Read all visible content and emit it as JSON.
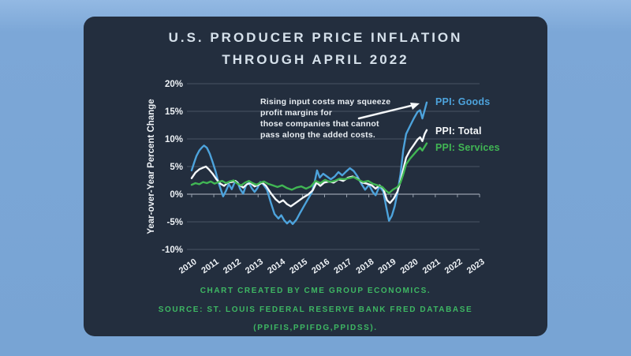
{
  "title": {
    "line1": "U.S. PRODUCER PRICE INFLATION",
    "line2": "THROUGH APRIL 2022"
  },
  "annotation": {
    "line1": "Rising input costs may squeeze",
    "line2": "profit margins for",
    "line3": "those companies that cannot",
    "line4": "pass along the added costs."
  },
  "legend": {
    "goods": "PPI: Goods",
    "total": "PPI: Total",
    "services": "PPI: Services"
  },
  "footer": {
    "line1": "CHART CREATED BY CME GROUP ECONOMICS.",
    "line2": "SOURCE: ST. LOUIS FEDERAL RESERVE BANK FRED DATABASE",
    "line3": "(PPIFIS,PPIFDG,PPIDSS)."
  },
  "colors": {
    "background": "#7ca7d7",
    "card": "#232e3e",
    "title_text": "#d6e1eb",
    "goods": "#4da3dc",
    "total": "#f4f7f9",
    "services": "#41b654",
    "footer_text": "#3eb763",
    "grid": "#4a5464",
    "zero_axis": "#97a0ad",
    "tick_text": "#eef2f6",
    "arrow": "#f4f7f9"
  },
  "chart_data": {
    "type": "line",
    "title": "U.S. Producer Price Inflation through April 2022",
    "xlabel": "",
    "ylabel": "Year-over-Year Percent Change",
    "ylim": [
      -10,
      20
    ],
    "xlim": [
      2010,
      2023
    ],
    "grid": true,
    "legend_position": "right of line ends",
    "y_ticks": [
      20,
      15,
      10,
      5,
      0,
      -5,
      -10
    ],
    "y_tick_labels": [
      "20%",
      "15%",
      "10%",
      "5%",
      "0%",
      "-5%",
      "-10%"
    ],
    "x_tick_labels": [
      "2010",
      "2011",
      "2012",
      "2013",
      "2014",
      "2015",
      "2016",
      "2017",
      "2018",
      "2019",
      "2020",
      "2021",
      "2022",
      "2023"
    ],
    "series": [
      {
        "name": "PPI: Goods",
        "color": "#4da3dc",
        "points": [
          [
            2010.0,
            4.3
          ],
          [
            2010.12,
            5.6
          ],
          [
            2010.25,
            6.9
          ],
          [
            2010.4,
            7.9
          ],
          [
            2010.55,
            8.5
          ],
          [
            2010.65,
            8.8
          ],
          [
            2010.8,
            8.4
          ],
          [
            2010.95,
            7.3
          ],
          [
            2011.1,
            5.8
          ],
          [
            2011.25,
            4.2
          ],
          [
            2011.4,
            2.2
          ],
          [
            2011.55,
            0.6
          ],
          [
            2011.65,
            -0.4
          ],
          [
            2011.8,
            0.6
          ],
          [
            2011.95,
            1.8
          ],
          [
            2012.1,
            0.9
          ],
          [
            2012.25,
            2.1
          ],
          [
            2012.4,
            2.2
          ],
          [
            2012.55,
            0.9
          ],
          [
            2012.7,
            0.1
          ],
          [
            2012.85,
            1.6
          ],
          [
            2013.0,
            2.1
          ],
          [
            2013.15,
            1.1
          ],
          [
            2013.3,
            0.4
          ],
          [
            2013.45,
            1.1
          ],
          [
            2013.6,
            2.2
          ],
          [
            2013.75,
            1.8
          ],
          [
            2013.95,
            0.8
          ],
          [
            2014.15,
            -1.5
          ],
          [
            2014.35,
            -3.6
          ],
          [
            2014.55,
            -4.4
          ],
          [
            2014.7,
            -3.8
          ],
          [
            2014.85,
            -4.7
          ],
          [
            2015.0,
            -5.3
          ],
          [
            2015.15,
            -4.8
          ],
          [
            2015.3,
            -5.4
          ],
          [
            2015.5,
            -4.6
          ],
          [
            2015.7,
            -3.3
          ],
          [
            2015.9,
            -2.1
          ],
          [
            2016.1,
            -0.9
          ],
          [
            2016.3,
            0.3
          ],
          [
            2016.45,
            2.2
          ],
          [
            2016.58,
            4.3
          ],
          [
            2016.72,
            3.0
          ],
          [
            2016.9,
            3.7
          ],
          [
            2017.1,
            3.2
          ],
          [
            2017.3,
            2.7
          ],
          [
            2017.5,
            3.2
          ],
          [
            2017.7,
            4.0
          ],
          [
            2017.9,
            3.4
          ],
          [
            2018.1,
            4.1
          ],
          [
            2018.3,
            4.7
          ],
          [
            2018.5,
            4.2
          ],
          [
            2018.7,
            3.2
          ],
          [
            2018.9,
            1.9
          ],
          [
            2019.1,
            0.8
          ],
          [
            2019.3,
            1.7
          ],
          [
            2019.5,
            0.4
          ],
          [
            2019.65,
            -0.2
          ],
          [
            2019.85,
            1.4
          ],
          [
            2020.05,
            0.5
          ],
          [
            2020.2,
            -2.2
          ],
          [
            2020.35,
            -4.8
          ],
          [
            2020.5,
            -3.9
          ],
          [
            2020.65,
            -2.2
          ],
          [
            2020.8,
            0.3
          ],
          [
            2020.95,
            3.6
          ],
          [
            2021.1,
            8.0
          ],
          [
            2021.25,
            10.9
          ],
          [
            2021.45,
            12.3
          ],
          [
            2021.65,
            13.7
          ],
          [
            2021.85,
            14.9
          ],
          [
            2021.98,
            15.2
          ],
          [
            2022.1,
            13.7
          ],
          [
            2022.22,
            15.2
          ],
          [
            2022.33,
            16.6
          ]
        ]
      },
      {
        "name": "PPI: Total",
        "color": "#f4f7f9",
        "points": [
          [
            2010.0,
            2.9
          ],
          [
            2010.2,
            3.9
          ],
          [
            2010.4,
            4.5
          ],
          [
            2010.6,
            4.8
          ],
          [
            2010.75,
            5.0
          ],
          [
            2010.9,
            4.5
          ],
          [
            2011.1,
            3.7
          ],
          [
            2011.3,
            2.7
          ],
          [
            2011.5,
            1.9
          ],
          [
            2011.7,
            1.5
          ],
          [
            2011.9,
            2.1
          ],
          [
            2012.1,
            2.2
          ],
          [
            2012.3,
            2.4
          ],
          [
            2012.5,
            1.7
          ],
          [
            2012.7,
            1.2
          ],
          [
            2012.9,
            1.8
          ],
          [
            2013.1,
            2.0
          ],
          [
            2013.3,
            1.4
          ],
          [
            2013.5,
            1.7
          ],
          [
            2013.7,
            2.1
          ],
          [
            2013.9,
            1.5
          ],
          [
            2014.15,
            0.2
          ],
          [
            2014.4,
            -0.9
          ],
          [
            2014.6,
            -1.5
          ],
          [
            2014.8,
            -1.1
          ],
          [
            2015.0,
            -1.8
          ],
          [
            2015.2,
            -2.2
          ],
          [
            2015.45,
            -1.6
          ],
          [
            2015.65,
            -1.1
          ],
          [
            2015.85,
            -0.6
          ],
          [
            2016.1,
            -0.1
          ],
          [
            2016.35,
            0.7
          ],
          [
            2016.55,
            2.1
          ],
          [
            2016.75,
            1.5
          ],
          [
            2016.95,
            2.1
          ],
          [
            2017.2,
            2.3
          ],
          [
            2017.45,
            2.1
          ],
          [
            2017.7,
            2.7
          ],
          [
            2017.95,
            2.4
          ],
          [
            2018.2,
            3.0
          ],
          [
            2018.45,
            3.2
          ],
          [
            2018.7,
            2.8
          ],
          [
            2018.95,
            2.1
          ],
          [
            2019.2,
            1.9
          ],
          [
            2019.45,
            1.6
          ],
          [
            2019.65,
            1.0
          ],
          [
            2019.85,
            1.6
          ],
          [
            2020.05,
            1.0
          ],
          [
            2020.25,
            -1.1
          ],
          [
            2020.4,
            -1.6
          ],
          [
            2020.6,
            -0.8
          ],
          [
            2020.8,
            0.5
          ],
          [
            2020.95,
            2.3
          ],
          [
            2021.1,
            4.5
          ],
          [
            2021.25,
            6.6
          ],
          [
            2021.45,
            7.9
          ],
          [
            2021.65,
            8.9
          ],
          [
            2021.85,
            9.9
          ],
          [
            2021.98,
            10.3
          ],
          [
            2022.1,
            9.6
          ],
          [
            2022.22,
            10.9
          ],
          [
            2022.33,
            11.6
          ]
        ]
      },
      {
        "name": "PPI: Services",
        "color": "#41b654",
        "points": [
          [
            2010.0,
            1.7
          ],
          [
            2010.2,
            2.0
          ],
          [
            2010.4,
            1.8
          ],
          [
            2010.6,
            2.2
          ],
          [
            2010.8,
            2.0
          ],
          [
            2011.0,
            2.3
          ],
          [
            2011.2,
            1.9
          ],
          [
            2011.4,
            2.2
          ],
          [
            2011.6,
            2.4
          ],
          [
            2011.8,
            2.0
          ],
          [
            2012.0,
            2.3
          ],
          [
            2012.2,
            2.5
          ],
          [
            2012.4,
            1.9
          ],
          [
            2012.6,
            1.6
          ],
          [
            2012.8,
            2.1
          ],
          [
            2013.0,
            2.4
          ],
          [
            2013.2,
            2.0
          ],
          [
            2013.4,
            1.7
          ],
          [
            2013.6,
            2.1
          ],
          [
            2013.8,
            2.3
          ],
          [
            2014.0,
            1.9
          ],
          [
            2014.25,
            1.6
          ],
          [
            2014.5,
            1.3
          ],
          [
            2014.75,
            1.6
          ],
          [
            2015.0,
            1.1
          ],
          [
            2015.25,
            0.8
          ],
          [
            2015.5,
            1.2
          ],
          [
            2015.75,
            1.4
          ],
          [
            2016.0,
            1.0
          ],
          [
            2016.25,
            1.4
          ],
          [
            2016.5,
            2.4
          ],
          [
            2016.75,
            2.0
          ],
          [
            2017.0,
            2.6
          ],
          [
            2017.25,
            2.2
          ],
          [
            2017.5,
            2.4
          ],
          [
            2017.75,
            2.8
          ],
          [
            2018.0,
            2.7
          ],
          [
            2018.25,
            2.9
          ],
          [
            2018.5,
            3.1
          ],
          [
            2018.75,
            2.6
          ],
          [
            2019.0,
            2.2
          ],
          [
            2019.25,
            2.4
          ],
          [
            2019.5,
            1.9
          ],
          [
            2019.75,
            1.6
          ],
          [
            2020.0,
            1.3
          ],
          [
            2020.2,
            0.6
          ],
          [
            2020.35,
            0.2
          ],
          [
            2020.55,
            0.8
          ],
          [
            2020.8,
            1.3
          ],
          [
            2020.95,
            2.1
          ],
          [
            2021.1,
            3.6
          ],
          [
            2021.25,
            5.4
          ],
          [
            2021.45,
            6.4
          ],
          [
            2021.65,
            7.2
          ],
          [
            2021.85,
            8.0
          ],
          [
            2021.98,
            8.4
          ],
          [
            2022.1,
            7.9
          ],
          [
            2022.22,
            8.6
          ],
          [
            2022.33,
            9.2
          ]
        ]
      }
    ]
  }
}
